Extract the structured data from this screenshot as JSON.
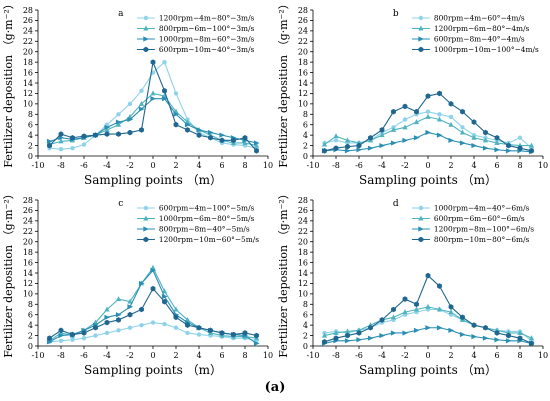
{
  "figure": {
    "caption_label": "(a)",
    "colors": [
      "#8fd3ea",
      "#4fb3c0",
      "#2a8fb3",
      "#1f6690"
    ]
  },
  "chart_data": [
    {
      "type": "line",
      "panel_label": "a",
      "xlabel": "Sampling points （m）",
      "ylabel": "Fertilizer deposition （g·m⁻²）",
      "xlim": [
        -10,
        10
      ],
      "ylim": [
        0,
        28
      ],
      "x_ticks": [
        -10,
        -8,
        -6,
        -4,
        -2,
        0,
        2,
        4,
        6,
        8,
        10
      ],
      "y_ticks": [
        0,
        2,
        4,
        6,
        8,
        10,
        12,
        14,
        16,
        18,
        20,
        22,
        24,
        26,
        28
      ],
      "legend_position": "top-right",
      "x": [
        -9,
        -8,
        -7,
        -6,
        -5,
        -4,
        -3,
        -2,
        -1,
        0,
        1,
        2,
        3,
        4,
        5,
        6,
        7,
        8,
        9
      ],
      "series": [
        {
          "name": "1200rpm−4m−80°−3m/s",
          "marker": "circle",
          "values": [
            1.5,
            1.3,
            1.5,
            2.2,
            4.0,
            6.0,
            8.0,
            10.0,
            12.5,
            16.0,
            18.0,
            12.0,
            7.0,
            4.5,
            3.5,
            2.5,
            2.2,
            2.0,
            1.5
          ]
        },
        {
          "name": "800rpm−6m−100°−3m/s",
          "marker": "triangle",
          "values": [
            2.2,
            2.8,
            3.0,
            3.5,
            4.0,
            5.0,
            6.0,
            7.5,
            10.0,
            12.0,
            11.5,
            8.5,
            6.5,
            5.0,
            4.0,
            3.0,
            2.5,
            2.5,
            2.0
          ]
        },
        {
          "name": "1000rpm−8m−60°−3m/s",
          "marker": "arrow",
          "values": [
            2.8,
            3.5,
            3.2,
            3.5,
            4.0,
            5.5,
            6.5,
            7.0,
            9.0,
            11.0,
            11.0,
            8.0,
            6.0,
            5.0,
            4.5,
            4.0,
            3.5,
            3.0,
            2.5
          ]
        },
        {
          "name": "600rpm−10m−40°−3m/s",
          "marker": "hexagon",
          "values": [
            2.0,
            4.2,
            3.5,
            3.8,
            4.0,
            4.2,
            4.2,
            4.5,
            5.0,
            18.0,
            12.5,
            6.0,
            5.0,
            4.0,
            3.5,
            3.0,
            3.0,
            3.5,
            1.0
          ]
        }
      ]
    },
    {
      "type": "line",
      "panel_label": "b",
      "xlabel": "Sampling points （m）",
      "ylabel": "Fertilizer deposition （g·m⁻²）",
      "xlim": [
        -10,
        10
      ],
      "ylim": [
        0,
        28
      ],
      "x_ticks": [
        -10,
        -8,
        -6,
        -4,
        -2,
        0,
        2,
        4,
        6,
        8,
        10
      ],
      "y_ticks": [
        0,
        2,
        4,
        6,
        8,
        10,
        12,
        14,
        16,
        18,
        20,
        22,
        24,
        26,
        28
      ],
      "legend_position": "top-right",
      "x": [
        -9,
        -8,
        -7,
        -6,
        -5,
        -4,
        -3,
        -2,
        -1,
        0,
        1,
        2,
        3,
        4,
        5,
        6,
        7,
        8,
        9
      ],
      "series": [
        {
          "name": "800rpm−4m−60°−4m/s",
          "marker": "circle",
          "values": [
            2.5,
            3.0,
            2.5,
            2.5,
            3.0,
            4.5,
            5.5,
            7.0,
            8.0,
            8.5,
            8.0,
            7.5,
            5.5,
            4.0,
            3.5,
            3.0,
            2.5,
            3.5,
            1.5
          ]
        },
        {
          "name": "1200rpm−6m−80°−4m/s",
          "marker": "triangle",
          "values": [
            2.2,
            3.8,
            3.0,
            2.5,
            3.0,
            4.0,
            5.0,
            5.5,
            6.5,
            7.5,
            7.0,
            6.0,
            4.5,
            3.5,
            3.0,
            2.5,
            2.2,
            2.0,
            2.0
          ]
        },
        {
          "name": "600rpm−8m−40°−4m/s",
          "marker": "arrow",
          "values": [
            1.0,
            1.2,
            1.0,
            1.2,
            1.5,
            2.0,
            2.5,
            3.0,
            3.5,
            4.5,
            4.0,
            3.0,
            2.5,
            2.0,
            1.5,
            1.2,
            1.0,
            1.0,
            0.8
          ]
        },
        {
          "name": "1000rpm−10m−100°−4m/s",
          "marker": "hexagon",
          "values": [
            1.0,
            1.5,
            1.8,
            2.0,
            3.5,
            5.0,
            8.5,
            9.5,
            8.5,
            11.5,
            12.0,
            10.0,
            8.5,
            6.5,
            4.5,
            3.5,
            2.0,
            1.5,
            1.0
          ]
        }
      ]
    },
    {
      "type": "line",
      "panel_label": "c",
      "xlabel": "Sampling points （m）",
      "ylabel": "Fertilizer deposition （g·m⁻²）",
      "xlim": [
        -10,
        10
      ],
      "ylim": [
        0,
        28
      ],
      "x_ticks": [
        -10,
        -8,
        -6,
        -4,
        -2,
        0,
        2,
        4,
        6,
        8,
        10
      ],
      "y_ticks": [
        0,
        2,
        4,
        6,
        8,
        10,
        12,
        14,
        16,
        18,
        20,
        22,
        24,
        26,
        28
      ],
      "legend_position": "top-right",
      "x": [
        -9,
        -8,
        -7,
        -6,
        -5,
        -4,
        -3,
        -2,
        -1,
        0,
        1,
        2,
        3,
        4,
        5,
        6,
        7,
        8,
        9
      ],
      "series": [
        {
          "name": "600rpm−4m−100°−5m/s",
          "marker": "circle",
          "values": [
            0.8,
            1.0,
            1.2,
            1.5,
            2.0,
            2.5,
            3.0,
            3.5,
            4.0,
            4.5,
            4.2,
            3.5,
            2.5,
            2.2,
            2.0,
            1.8,
            1.5,
            1.5,
            1.0
          ]
        },
        {
          "name": "1000rpm−6m−80°−5m/s",
          "marker": "triangle",
          "values": [
            1.0,
            2.5,
            2.0,
            3.0,
            4.5,
            7.0,
            9.0,
            8.5,
            12.0,
            15.0,
            10.5,
            7.0,
            5.0,
            3.5,
            2.5,
            2.0,
            1.8,
            1.8,
            1.5
          ]
        },
        {
          "name": "800rpm−8m−40°−5m/s",
          "marker": "arrow",
          "values": [
            0.8,
            2.0,
            2.2,
            3.0,
            4.0,
            5.5,
            6.0,
            7.5,
            12.0,
            14.5,
            9.5,
            6.0,
            4.5,
            3.5,
            3.0,
            2.5,
            2.2,
            2.0,
            0.5
          ]
        },
        {
          "name": "1200rpm−10m−60°−5m/s",
          "marker": "hexagon",
          "values": [
            1.5,
            3.0,
            2.2,
            2.5,
            3.5,
            4.5,
            5.0,
            6.0,
            7.0,
            11.0,
            8.5,
            5.5,
            4.0,
            3.5,
            3.0,
            2.5,
            2.2,
            2.5,
            2.0
          ]
        }
      ]
    },
    {
      "type": "line",
      "panel_label": "d",
      "xlabel": "Sampling points （m）",
      "ylabel": "Fertilizer deposition （g·m⁻²）",
      "xlim": [
        -10,
        10
      ],
      "ylim": [
        0,
        28
      ],
      "x_ticks": [
        -10,
        -8,
        -6,
        -4,
        -2,
        0,
        2,
        4,
        6,
        8,
        10
      ],
      "y_ticks": [
        0,
        2,
        4,
        6,
        8,
        10,
        12,
        14,
        16,
        18,
        20,
        22,
        24,
        26,
        28
      ],
      "legend_position": "top-right",
      "x": [
        -9,
        -8,
        -7,
        -6,
        -5,
        -4,
        -3,
        -2,
        -1,
        0,
        1,
        2,
        3,
        4,
        5,
        6,
        7,
        8,
        9
      ],
      "series": [
        {
          "name": "1000rpm−4m−40°−6m/s",
          "marker": "circle",
          "values": [
            2.5,
            2.8,
            2.5,
            3.0,
            3.5,
            4.5,
            5.0,
            6.0,
            6.5,
            7.0,
            7.0,
            6.0,
            5.0,
            4.0,
            3.5,
            3.0,
            2.8,
            2.8,
            1.0
          ]
        },
        {
          "name": "600rpm−6m−60°−6m/s",
          "marker": "triangle",
          "values": [
            2.0,
            2.5,
            2.8,
            3.0,
            4.0,
            5.0,
            5.5,
            6.5,
            7.0,
            7.5,
            7.0,
            6.5,
            5.0,
            4.0,
            3.5,
            3.0,
            2.5,
            2.5,
            1.5
          ]
        },
        {
          "name": "1200rpm−8m−100°−6m/s",
          "marker": "arrow",
          "values": [
            0.5,
            1.0,
            1.0,
            1.2,
            1.5,
            2.0,
            2.5,
            2.5,
            3.0,
            3.5,
            3.5,
            3.0,
            2.2,
            1.8,
            1.5,
            1.2,
            1.0,
            1.0,
            0.5
          ]
        },
        {
          "name": "800rpm−10m−80°−6m/s",
          "marker": "hexagon",
          "values": [
            0.8,
            1.5,
            2.0,
            2.5,
            3.5,
            5.0,
            7.0,
            9.0,
            8.0,
            13.5,
            11.5,
            7.5,
            5.5,
            4.0,
            3.5,
            2.5,
            2.0,
            1.5,
            0.5
          ]
        }
      ]
    }
  ]
}
